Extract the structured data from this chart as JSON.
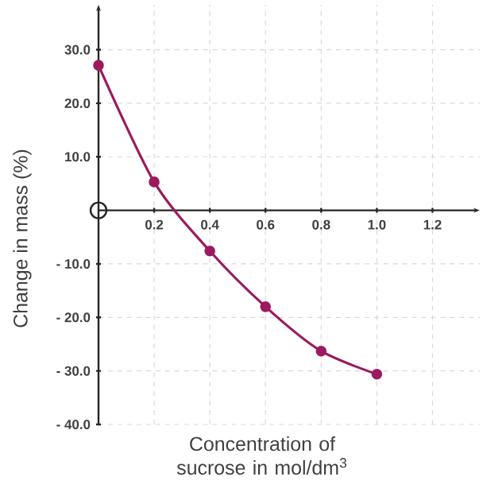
{
  "chart_data": {
    "type": "line",
    "xlabel": "Concentration of sucrose in mol/dm$^{3}$",
    "ylabel": "Change in mass (%)",
    "x": [
      0,
      0.2,
      0.4,
      0.6,
      0.8,
      1.0
    ],
    "series": [
      {
        "color": "#9b1b5e",
        "values": [
          27.1,
          5.3,
          -7.6,
          -18.0,
          -26.3,
          -30.6
        ]
      }
    ],
    "xlim": [
      0,
      1.37
    ],
    "ylim": [
      -40,
      38.4
    ],
    "xticks": [
      0.2,
      0.4,
      0.6,
      0.8,
      {
        "value": 1.0,
        "label": "1.0"
      },
      1.2
    ],
    "yticks": [
      {
        "value": 30,
        "label": "30.0"
      },
      {
        "value": 20,
        "label": "20.0"
      },
      {
        "value": 10,
        "label": "10.0"
      },
      {
        "value": -10,
        "label": "- 10.0"
      },
      {
        "value": -20,
        "label": "- 20.0"
      },
      {
        "value": -30,
        "label": "- 30.0"
      },
      {
        "value": -40,
        "label": "- 40.0"
      }
    ],
    "grid": true,
    "marker": "circle",
    "line_style": "solid"
  }
}
